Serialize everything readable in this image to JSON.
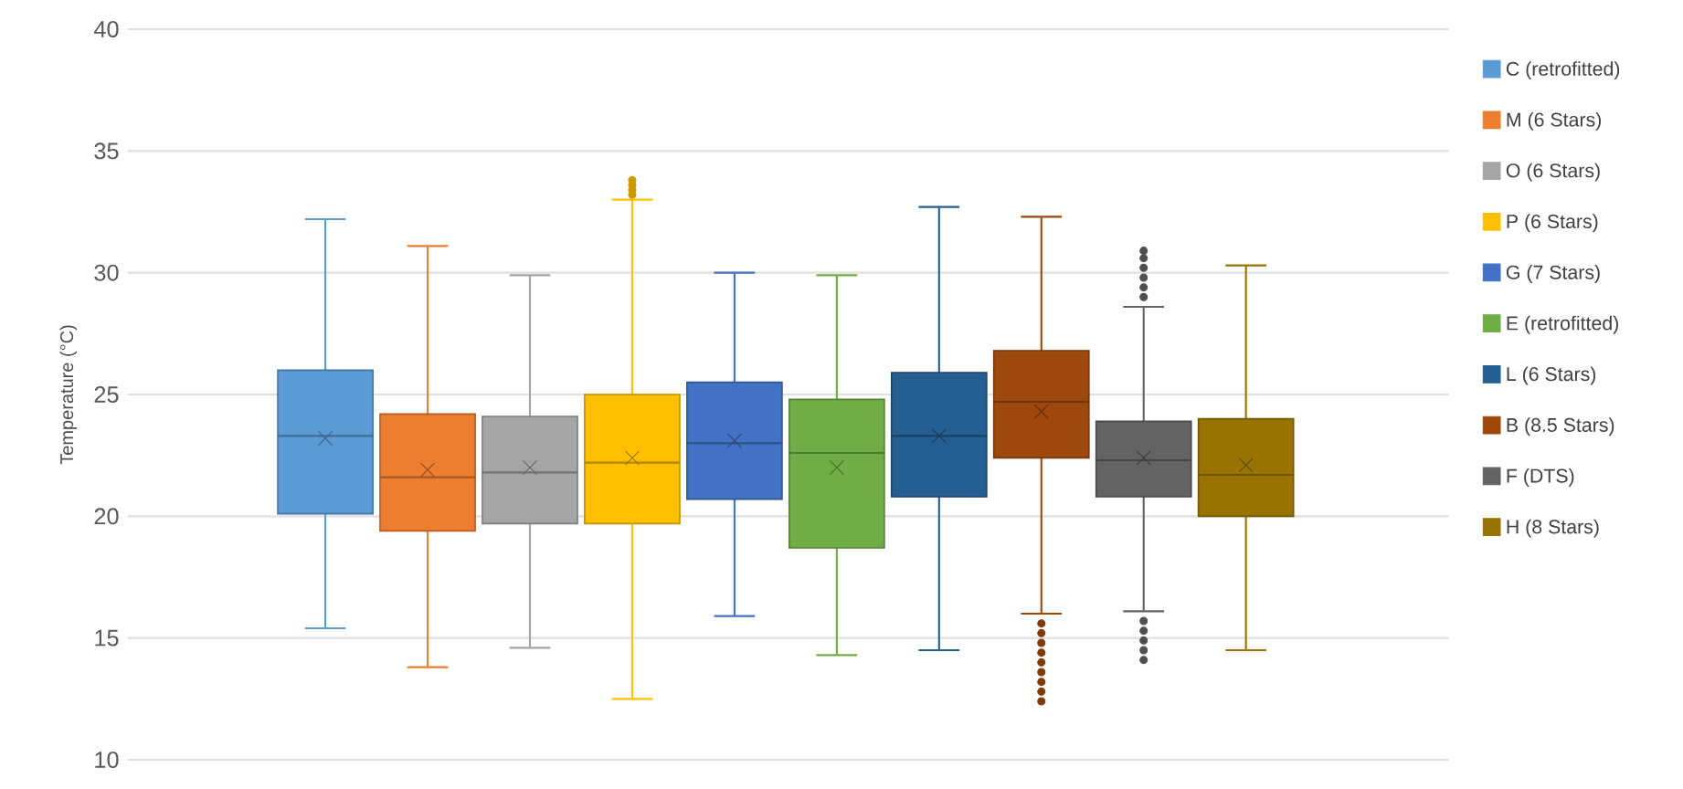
{
  "chart_data": {
    "type": "box",
    "ylabel": "Temperature (°C)",
    "categories": [
      null
    ],
    "series": [
      {
        "name": "C (retrofitted)",
        "color": "#5b9bd5",
        "boxes": [
          {
            "low": 15.4,
            "q1": 20.1,
            "median": 23.3,
            "q3": 26.0,
            "high": 32.2,
            "mean": 23.2
          }
        ]
      },
      {
        "name": "M (6 Stars)",
        "color": "#ed7d31",
        "boxes": [
          {
            "low": 13.8,
            "q1": 19.4,
            "median": 21.6,
            "q3": 24.2,
            "high": 31.1,
            "mean": 21.9
          }
        ]
      },
      {
        "name": "O (6 Stars)",
        "color": "#a5a5a5",
        "boxes": [
          {
            "low": 14.6,
            "q1": 19.7,
            "median": 21.8,
            "q3": 24.1,
            "high": 29.9,
            "mean": 22.0
          }
        ]
      },
      {
        "name": "P (6 Stars)",
        "color": "#ffc000",
        "boxes": [
          {
            "low": 12.5,
            "q1": 19.7,
            "median": 22.2,
            "q3": 25.0,
            "high": 33.0,
            "mean": 22.4,
            "outliers": [
              33.2,
              33.4,
              33.6,
              33.8
            ]
          }
        ]
      },
      {
        "name": "G (7 Stars)",
        "color": "#4472c4",
        "boxes": [
          {
            "low": 15.9,
            "q1": 20.7,
            "median": 23.0,
            "q3": 25.5,
            "high": 30.0,
            "mean": 23.1
          }
        ]
      },
      {
        "name": "E (retrofitted)",
        "color": "#70ad47",
        "boxes": [
          {
            "low": 14.3,
            "q1": 18.7,
            "median": 22.6,
            "q3": 24.8,
            "high": 29.9,
            "mean": 22.0
          }
        ]
      },
      {
        "name": "L (6 Stars)",
        "color": "#255e91",
        "boxes": [
          {
            "low": 14.5,
            "q1": 20.8,
            "median": 23.3,
            "q3": 25.9,
            "high": 32.7,
            "mean": 23.3
          }
        ]
      },
      {
        "name": "B (8.5 Stars)",
        "color": "#9e480e",
        "boxes": [
          {
            "low": 16.0,
            "q1": 22.4,
            "median": 24.7,
            "q3": 26.8,
            "high": 32.3,
            "mean": 24.3,
            "outliers": [
              15.6,
              15.2,
              14.8,
              14.4,
              14.0,
              13.6,
              13.2,
              12.8,
              12.4
            ]
          }
        ]
      },
      {
        "name": "F (DTS)",
        "color": "#636363",
        "boxes": [
          {
            "low": 16.1,
            "q1": 20.8,
            "median": 22.3,
            "q3": 23.9,
            "high": 28.6,
            "mean": 22.4,
            "outliers": [
              29.0,
              29.4,
              29.8,
              30.2,
              30.6,
              30.9,
              15.7,
              15.3,
              14.9,
              14.5,
              14.1
            ]
          }
        ]
      },
      {
        "name": "H (8 Stars)",
        "color": "#997300",
        "boxes": [
          {
            "low": 14.5,
            "q1": 20.0,
            "median": 21.7,
            "q3": 24.0,
            "high": 30.3,
            "mean": 22.1
          }
        ]
      }
    ],
    "ylim": [
      10,
      40
    ],
    "yticks": [
      10,
      15,
      20,
      25,
      30,
      35,
      40
    ],
    "grid": "y",
    "legend": "right",
    "tick_labels": "y"
  }
}
